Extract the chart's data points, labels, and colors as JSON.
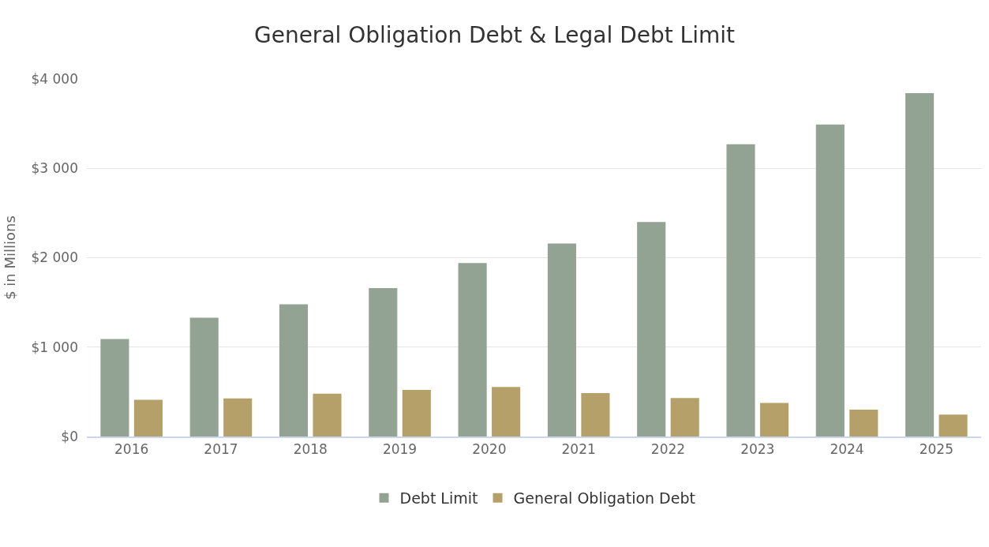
{
  "chart_data": {
    "type": "bar",
    "title": "General Obligation Debt & Legal Debt Limit",
    "ylabel": "$ in Millions",
    "categories": [
      "2016",
      "2017",
      "2018",
      "2019",
      "2020",
      "2021",
      "2022",
      "2023",
      "2024",
      "2025"
    ],
    "series": [
      {
        "name": "Debt Limit",
        "color": "#93a393",
        "values": [
          1090,
          1330,
          1480,
          1660,
          1940,
          2160,
          2400,
          3270,
          3490,
          3840
        ]
      },
      {
        "name": "General Obligation Debt",
        "color": "#b4a068",
        "values": [
          410,
          425,
          480,
          520,
          555,
          485,
          430,
          375,
          300,
          245
        ]
      }
    ],
    "ylim": [
      0,
      4000
    ],
    "yticks": [
      {
        "value": 0,
        "label": "$0"
      },
      {
        "value": 1000,
        "label": "$1 000"
      },
      {
        "value": 2000,
        "label": "$2 000"
      },
      {
        "value": 3000,
        "label": "$3 000"
      },
      {
        "value": 4000,
        "label": "$4 000"
      }
    ],
    "grid": "y",
    "legend": "bottom"
  }
}
